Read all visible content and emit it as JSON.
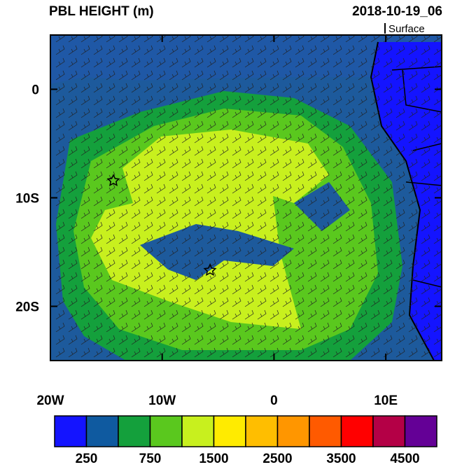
{
  "header": {
    "title": "PBL HEIGHT (m)",
    "time": "2018-10-19_06",
    "level": "Surface"
  },
  "map": {
    "xlim": [
      -20,
      15
    ],
    "ylim": [
      -25,
      5
    ],
    "xticks": [
      {
        "value": -20,
        "label": "20W"
      },
      {
        "value": -10,
        "label": "10W"
      },
      0,
      {
        "value": 10,
        "label": "10E"
      }
    ],
    "yticks": [
      0,
      {
        "value": -10,
        "label": "10S"
      },
      {
        "value": -20,
        "label": "20S"
      }
    ]
  },
  "colorbar": {
    "colors": [
      "#1414ff",
      "#0f5aa0",
      "#14a03c",
      "#5ac81e",
      "#c8f01e",
      "#ffeb00",
      "#ffbe00",
      "#ff9600",
      "#ff5a00",
      "#ff0000",
      "#b40046",
      "#640096"
    ],
    "labels": [
      250,
      750,
      1500,
      2500,
      3500,
      4500
    ]
  }
}
